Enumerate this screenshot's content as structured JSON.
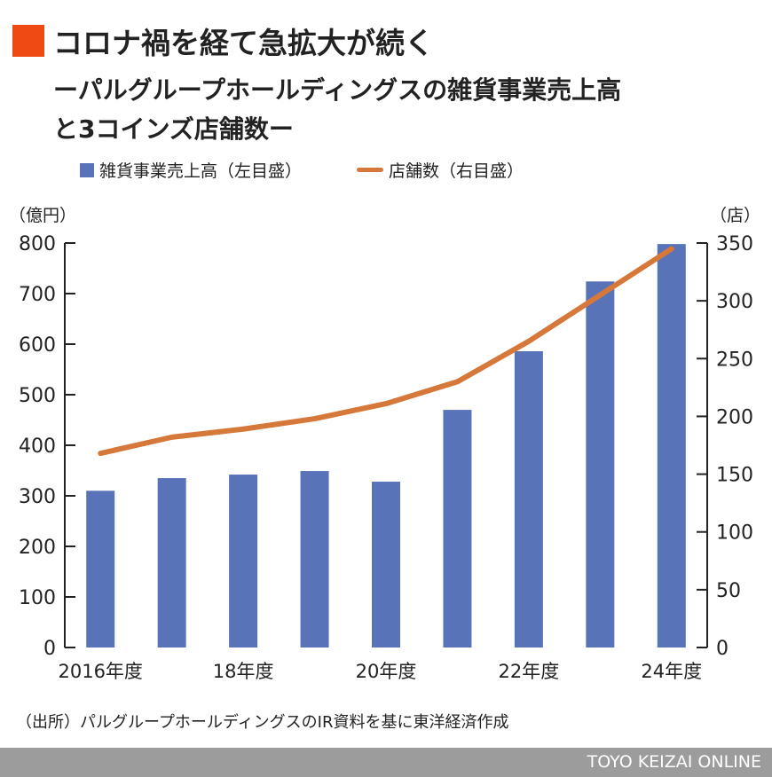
{
  "title": "コロナ禍を経て急拡大が続く",
  "subtitle_line1": "ーパルグループホールディングスの雑貨事業売上高",
  "subtitle_line2": "と3コインズ店舗数ー",
  "footer": "TOYO KEIZAI ONLINE",
  "source": "（出所）パルグループホールディングスのIR資料を基に東洋経済作成",
  "colors": {
    "bar": "#5873b8",
    "line": "#d6783a",
    "accent": "#f04a14"
  },
  "chart_data": {
    "type": "bar+line",
    "categories": [
      "2016",
      "2017",
      "2018",
      "2019",
      "2020",
      "2021",
      "2022",
      "2023",
      "2024"
    ],
    "x_tick_labels": [
      "2016年度",
      "",
      "18年度",
      "",
      "20年度",
      "",
      "22年度",
      "",
      "24年度"
    ],
    "left_unit": "（億円）",
    "right_unit": "（店）",
    "left_ylim": [
      0,
      800
    ],
    "left_ticks": [
      0,
      100,
      200,
      300,
      400,
      500,
      600,
      700,
      800
    ],
    "right_ylim": [
      0,
      350
    ],
    "right_ticks": [
      0,
      50,
      100,
      150,
      200,
      250,
      300,
      350
    ],
    "grid": false,
    "legend_placement": "top",
    "series": [
      {
        "name": "雑貨事業売上高（左目盛）",
        "type": "bar",
        "axis": "left",
        "values": [
          310,
          335,
          342,
          349,
          328,
          470,
          586,
          724,
          798
        ]
      },
      {
        "name": "店舗数（右目盛）",
        "type": "line",
        "axis": "right",
        "values": [
          168,
          182,
          189,
          198,
          211,
          230,
          265,
          305,
          345
        ]
      }
    ]
  }
}
